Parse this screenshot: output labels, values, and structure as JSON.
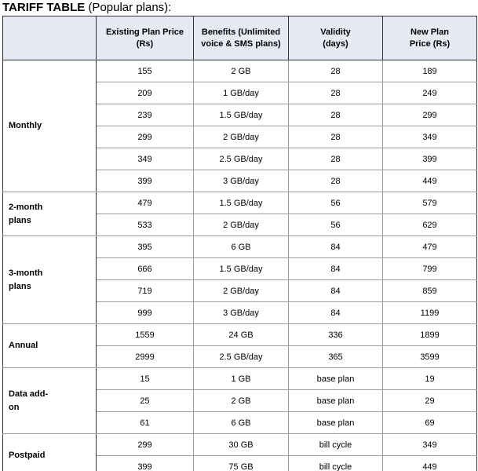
{
  "header": {
    "title": "TARIFF TABLE",
    "subtitle": "(Popular plans):"
  },
  "table": {
    "columns": [
      "Existing Plan Price (Rs)",
      "Benefits (Unlimited voice & SMS plans)",
      "Validity (days)",
      "New Plan Price (Rs)"
    ],
    "groups": [
      {
        "label": "Monthly",
        "rows": [
          [
            155,
            "2 GB",
            28,
            189
          ],
          [
            209,
            "1 GB/day",
            28,
            249
          ],
          [
            239,
            "1.5 GB/day",
            28,
            299
          ],
          [
            299,
            "2 GB/day",
            28,
            349
          ],
          [
            349,
            "2.5 GB/day",
            28,
            399
          ],
          [
            399,
            "3 GB/day",
            28,
            449
          ]
        ]
      },
      {
        "label": "2-month plans",
        "rows": [
          [
            479,
            "1.5 GB/day",
            56,
            579
          ],
          [
            533,
            "2 GB/day",
            56,
            629
          ]
        ]
      },
      {
        "label": "3-month plans",
        "rows": [
          [
            395,
            "6 GB",
            84,
            479
          ],
          [
            666,
            "1.5 GB/day",
            84,
            799
          ],
          [
            719,
            "2 GB/day",
            84,
            859
          ],
          [
            999,
            "3 GB/day",
            84,
            1199
          ]
        ]
      },
      {
        "label": "Annual",
        "rows": [
          [
            1559,
            "24 GB",
            336,
            1899
          ],
          [
            2999,
            "2.5 GB/day",
            365,
            3599
          ]
        ]
      },
      {
        "label": "Data add-on",
        "rows": [
          [
            15,
            "1 GB",
            "base plan",
            19
          ],
          [
            25,
            "2 GB",
            "base plan",
            29
          ],
          [
            61,
            "6 GB",
            "base plan",
            69
          ]
        ]
      },
      {
        "label": "Postpaid",
        "rows": [
          [
            299,
            "30 GB",
            "bill cycle",
            349
          ],
          [
            399,
            "75 GB",
            "bill cycle",
            449
          ]
        ]
      }
    ]
  }
}
